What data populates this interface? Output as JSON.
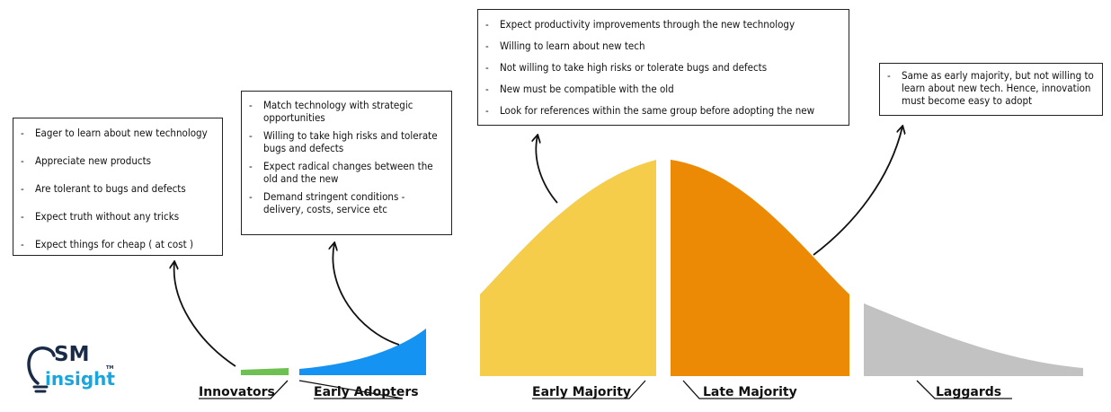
{
  "logo": {
    "top": "SM",
    "bottom": "insight",
    "tm": "TM",
    "colors": {
      "primary": "#1a2b47",
      "accent": "#19a6e0"
    }
  },
  "segments": [
    {
      "name": "Innovators",
      "color": "#6ec052",
      "points": [
        "Eager to learn about new technology",
        "Appreciate new products",
        "Are tolerant to bugs and defects",
        "Expect truth without any tricks",
        "Expect things for cheap ( at cost )"
      ]
    },
    {
      "name": "Early Adopters",
      "color": "#1593f2",
      "points": [
        "Match technology with strategic opportunities",
        "Willing to take high risks and tolerate bugs and defects",
        "Expect radical changes between the old and the new",
        "Demand stringent conditions - delivery, costs, service etc"
      ]
    },
    {
      "name": "Early Majority",
      "color": "#f5cd4b",
      "points": [
        "Expect productivity improvements through the new technology",
        "Willing to learn about new tech",
        "Not willing to take high risks or tolerate bugs and defects",
        "New must be compatible with the old",
        "Look for references within the same group before adopting the new"
      ]
    },
    {
      "name": "Late Majority",
      "color": "#ec8a06",
      "points": []
    },
    {
      "name": "Laggards",
      "color": "#c2c2c2",
      "points": [
        "Same as early majority, but not willing to learn about new tech. Hence, innovation must become easy to adopt"
      ]
    }
  ]
}
